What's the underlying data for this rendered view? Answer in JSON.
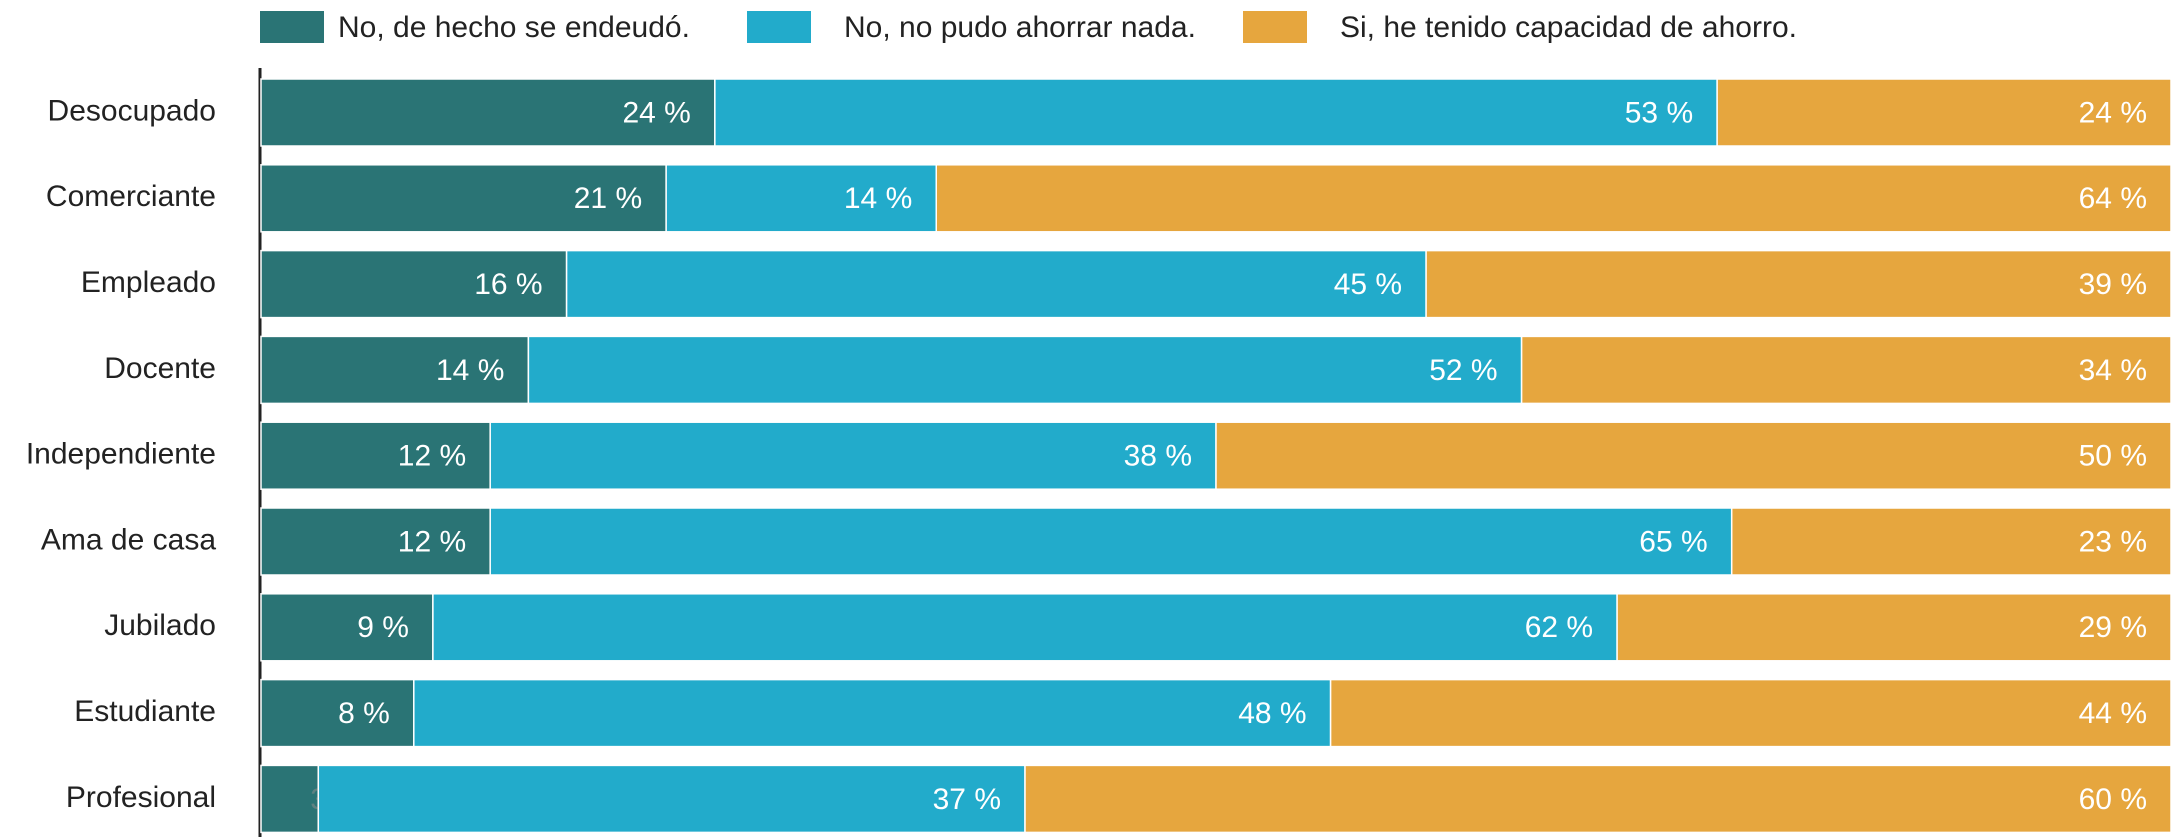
{
  "chart_data": {
    "type": "stacked-bar-horizontal",
    "categories": [
      "Desocupado",
      "Comerciante",
      "Empleado",
      "Docente",
      "Independiente",
      "Ama de casa",
      "Jubilado",
      "Estudiante",
      "Profesional"
    ],
    "series": [
      {
        "name": "No, de hecho se endeudó.",
        "color": "#2a7475",
        "values": [
          24,
          21,
          16,
          14,
          12,
          12,
          9,
          8,
          3
        ],
        "value_labels": [
          "24 %",
          "21 %",
          "16 %",
          "14 %",
          "12 %",
          "12 %",
          "9 %",
          "8 %",
          "3 %"
        ]
      },
      {
        "name": "No, no pudo ahorrar nada.",
        "color": "#22abcb",
        "values": [
          53,
          14,
          45,
          52,
          38,
          65,
          62,
          48,
          37
        ],
        "value_labels": [
          "53 %",
          "14 %",
          "45 %",
          "52 %",
          "38 %",
          "65 %",
          "62 %",
          "48 %",
          "37 %"
        ]
      },
      {
        "name": "Si, he tenido capacidad de ahorro.",
        "color": "#e6a63e",
        "values": [
          24,
          64,
          39,
          34,
          50,
          23,
          29,
          44,
          60
        ],
        "value_labels": [
          "24 %",
          "64 %",
          "39 %",
          "34 %",
          "50 %",
          "23 %",
          "29 %",
          "44 %",
          "60 %"
        ]
      }
    ],
    "legend": "top"
  }
}
